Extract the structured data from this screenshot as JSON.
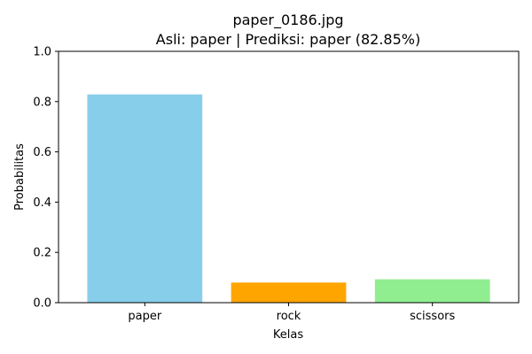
{
  "chart_data": {
    "type": "bar",
    "title": "paper_0186.jpg",
    "subtitle": "Asli: paper | Prediksi: paper (82.85%)",
    "xlabel": "Kelas",
    "ylabel": "Probabilitas",
    "categories": [
      "paper",
      "rock",
      "scissors"
    ],
    "values": [
      0.8285,
      0.08,
      0.093
    ],
    "colors": [
      "#87ceeb",
      "#ffa500",
      "#90ee90"
    ],
    "ylim": [
      0,
      1.0
    ],
    "yticks": [
      "0.0",
      "0.2",
      "0.4",
      "0.6",
      "0.8",
      "1.0"
    ],
    "grid": false,
    "legend": "none"
  }
}
